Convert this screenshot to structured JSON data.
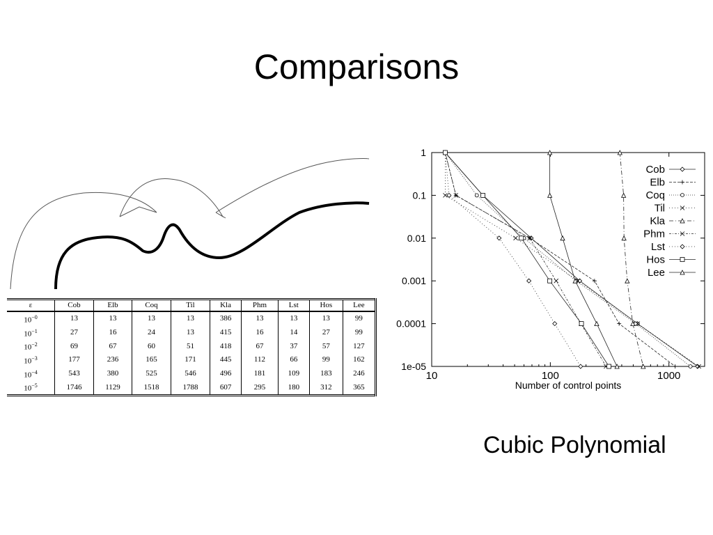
{
  "slide": {
    "title": "Comparisons",
    "caption": "Cubic Polynomial"
  },
  "table": {
    "epsilon_header": "ε",
    "columns": [
      "Cob",
      "Elb",
      "Coq",
      "Til",
      "Kla",
      "Phm",
      "Lst",
      "Hos",
      "Lee"
    ],
    "rows": [
      {
        "eps_base": "10",
        "eps_exp": "−0",
        "values": [
          "13",
          "13",
          "13",
          "13",
          "386",
          "13",
          "13",
          "13",
          "99"
        ]
      },
      {
        "eps_base": "10",
        "eps_exp": "−1",
        "values": [
          "27",
          "16",
          "24",
          "13",
          "415",
          "16",
          "14",
          "27",
          "99"
        ]
      },
      {
        "eps_base": "10",
        "eps_exp": "−2",
        "values": [
          "69",
          "67",
          "60",
          "51",
          "418",
          "67",
          "37",
          "57",
          "127"
        ]
      },
      {
        "eps_base": "10",
        "eps_exp": "−3",
        "values": [
          "177",
          "236",
          "165",
          "171",
          "445",
          "112",
          "66",
          "99",
          "162"
        ]
      },
      {
        "eps_base": "10",
        "eps_exp": "−4",
        "values": [
          "543",
          "380",
          "525",
          "546",
          "496",
          "181",
          "109",
          "183",
          "246"
        ]
      },
      {
        "eps_base": "10",
        "eps_exp": "−5",
        "values": [
          "1746",
          "1129",
          "1518",
          "1788",
          "607",
          "295",
          "180",
          "312",
          "365"
        ]
      }
    ]
  },
  "chart_data": {
    "type": "line",
    "xscale": "log",
    "yscale": "log",
    "xlim": [
      10,
      2000
    ],
    "ylim": [
      1e-05,
      1
    ],
    "xlabel": "Number of control points",
    "ylabel": "",
    "x_tick_labels": [
      "10",
      "100",
      "1000"
    ],
    "y_tick_labels": [
      "1",
      "0.1",
      "0.01",
      "0.001",
      "0.0001",
      "1e-05"
    ],
    "legend_position": "top-right",
    "series": [
      {
        "name": "Cob",
        "x": [
          13,
          27,
          69,
          177,
          543,
          1746
        ],
        "y": [
          1,
          0.1,
          0.01,
          0.001,
          0.0001,
          1e-05
        ]
      },
      {
        "name": "Elb",
        "x": [
          13,
          16,
          67,
          236,
          380,
          1129
        ],
        "y": [
          1,
          0.1,
          0.01,
          0.001,
          0.0001,
          1e-05
        ]
      },
      {
        "name": "Coq",
        "x": [
          13,
          24,
          60,
          165,
          525,
          1518
        ],
        "y": [
          1,
          0.1,
          0.01,
          0.001,
          0.0001,
          1e-05
        ]
      },
      {
        "name": "Til",
        "x": [
          13,
          13,
          51,
          171,
          546,
          1788
        ],
        "y": [
          1,
          0.1,
          0.01,
          0.001,
          0.0001,
          1e-05
        ]
      },
      {
        "name": "Kla",
        "x": [
          386,
          415,
          418,
          445,
          496,
          607
        ],
        "y": [
          1,
          0.1,
          0.01,
          0.001,
          0.0001,
          1e-05
        ]
      },
      {
        "name": "Phm",
        "x": [
          13,
          16,
          67,
          112,
          181,
          295
        ],
        "y": [
          1,
          0.1,
          0.01,
          0.001,
          0.0001,
          1e-05
        ]
      },
      {
        "name": "Lst",
        "x": [
          13,
          14,
          37,
          66,
          109,
          180
        ],
        "y": [
          1,
          0.1,
          0.01,
          0.001,
          0.0001,
          1e-05
        ]
      },
      {
        "name": "Hos",
        "x": [
          13,
          27,
          57,
          99,
          183,
          312
        ],
        "y": [
          1,
          0.1,
          0.01,
          0.001,
          0.0001,
          1e-05
        ]
      },
      {
        "name": "Lee",
        "x": [
          99,
          99,
          127,
          162,
          246,
          365
        ],
        "y": [
          1,
          0.1,
          0.01,
          0.001,
          0.0001,
          1e-05
        ]
      }
    ]
  }
}
